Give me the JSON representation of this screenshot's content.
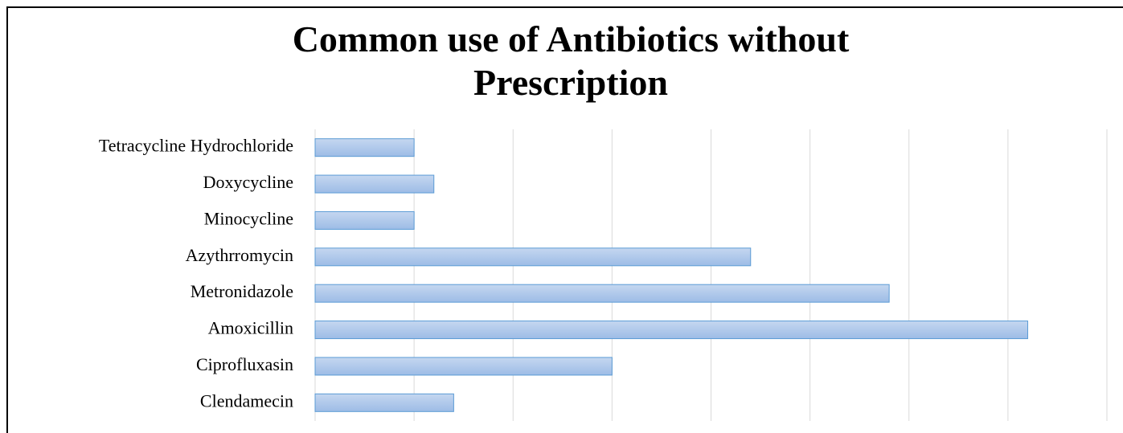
{
  "chart_data": {
    "type": "bar",
    "orientation": "horizontal",
    "title": "Common use of Antibiotics without Prescription",
    "categories": [
      "Tetracycline Hydrochloride",
      "Doxycycline",
      "Minocycline",
      "Azythrromycin",
      "Metronidazole",
      "Amoxicillin",
      "Ciprofluxasin",
      "Clendamecin"
    ],
    "values": [
      1,
      1.2,
      1,
      4.4,
      5.8,
      7.2,
      3,
      1.4
    ],
    "color": "#a9c4ea",
    "xlim": [
      0,
      8
    ],
    "xticks": [
      0,
      1,
      2,
      3,
      4,
      5,
      6,
      7,
      8
    ],
    "grid": true
  }
}
